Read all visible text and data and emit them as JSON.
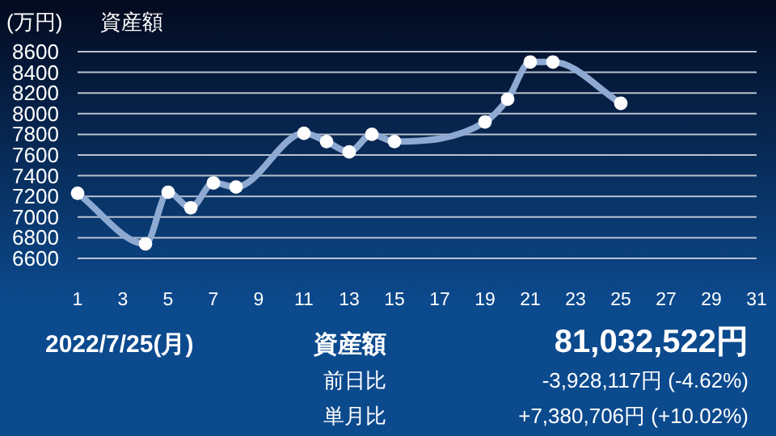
{
  "chart_data": {
    "type": "line",
    "title": "資産額",
    "ylabel": "(万円)",
    "xlim": [
      1,
      31
    ],
    "xticks": [
      1,
      3,
      5,
      7,
      9,
      11,
      13,
      15,
      17,
      19,
      21,
      23,
      25,
      27,
      29,
      31
    ],
    "ylim": [
      6600,
      8600
    ],
    "yticks": [
      6600,
      6800,
      7000,
      7200,
      7400,
      7600,
      7800,
      8000,
      8200,
      8400,
      8600
    ],
    "grid": "y",
    "marker": "circle",
    "line_style": "solid",
    "series": [
      {
        "color": "#8eaad2",
        "x": [
          1,
          4,
          5,
          6,
          7,
          8,
          11,
          12,
          13,
          14,
          15,
          19,
          20,
          21,
          22,
          25
        ],
        "values": [
          7230,
          6740,
          7240,
          7090,
          7330,
          7290,
          7810,
          7730,
          7630,
          7800,
          7730,
          7920,
          8140,
          8500,
          8500,
          8100
        ]
      }
    ],
    "annotations": [
      "2022/7/25(月)",
      "資産額",
      "81,032,522円",
      "前日比",
      "-3,928,117円 (-4.62%)",
      "単月比",
      "+7,380,706円 (+10.02%)"
    ]
  }
}
